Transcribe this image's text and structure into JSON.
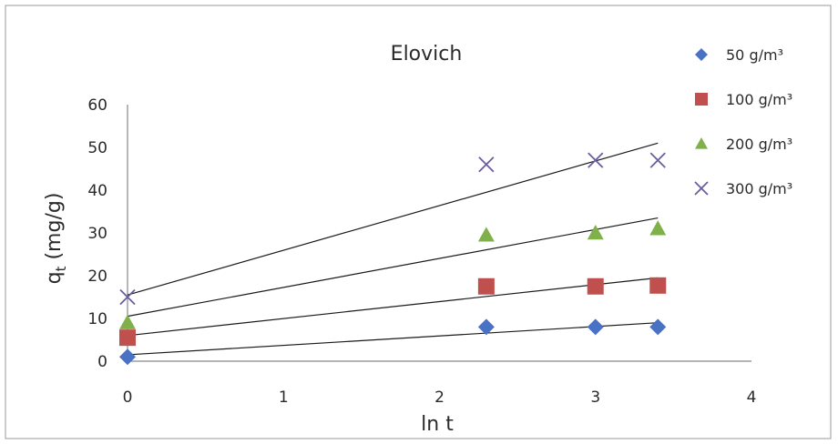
{
  "chart_data": {
    "type": "scatter",
    "title": "Elovich",
    "xlabel": "ln t",
    "ylabel_main": "q",
    "ylabel_sub": "t",
    "ylabel_unit": " (mg/g)",
    "xlim": [
      0,
      4
    ],
    "ylim": [
      0,
      60
    ],
    "x_ticks": [
      0,
      1,
      2,
      3,
      4
    ],
    "y_ticks": [
      0,
      10,
      20,
      30,
      40,
      50,
      60
    ],
    "grid": false,
    "legend_position": "right",
    "series": [
      {
        "name": "50 g/m³",
        "marker": "diamond",
        "color": "#4a72c4",
        "points": [
          [
            0,
            1
          ],
          [
            2.3,
            8
          ],
          [
            3.0,
            8
          ],
          [
            3.4,
            8
          ]
        ],
        "trendline": [
          [
            0,
            1.5
          ],
          [
            3.4,
            9
          ]
        ]
      },
      {
        "name": "100 g/m³",
        "marker": "square",
        "color": "#c0504d",
        "points": [
          [
            0,
            5.5
          ],
          [
            2.3,
            17.5
          ],
          [
            3.0,
            17.5
          ],
          [
            3.4,
            17.7
          ]
        ],
        "trendline": [
          [
            0,
            6
          ],
          [
            3.4,
            19.5
          ]
        ]
      },
      {
        "name": "200 g/m³",
        "marker": "triangle",
        "color": "#7fb04a",
        "points": [
          [
            0,
            9
          ],
          [
            2.3,
            29.5
          ],
          [
            3.0,
            30
          ],
          [
            3.4,
            31
          ]
        ],
        "trendline": [
          [
            0,
            10.5
          ],
          [
            3.4,
            33.5
          ]
        ]
      },
      {
        "name": "300 g/m³",
        "marker": "x",
        "color": "#6b5d9e",
        "points": [
          [
            0,
            15
          ],
          [
            2.3,
            46
          ],
          [
            3.0,
            47
          ],
          [
            3.4,
            47
          ]
        ],
        "trendline": [
          [
            0,
            15.5
          ],
          [
            3.4,
            51
          ]
        ]
      }
    ]
  }
}
